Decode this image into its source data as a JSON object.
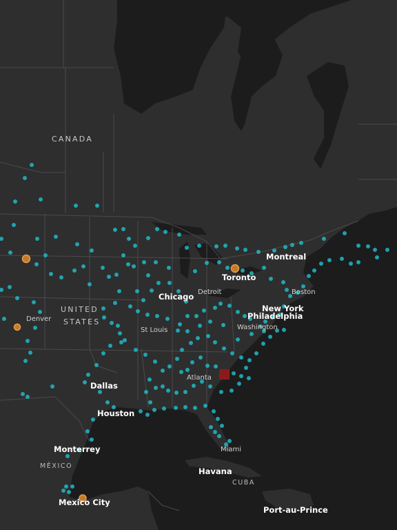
{
  "map": {
    "colors": {
      "land": "#2d2d2e",
      "water": "#1c1c1d",
      "border": "#4a4a4c",
      "station": "#1fb9c4",
      "highlight_orange": "#e08a2c",
      "highlight_red": "#8c1a1a"
    },
    "country_labels": {
      "canada": "CANADA",
      "united": "UNITED",
      "states": "STATES",
      "mexico": "MÉXICO",
      "cuba": "CUBA"
    },
    "city_labels": {
      "montreal": "Montreal",
      "toronto": "Toronto",
      "detroit": "Detroit",
      "boston": "Boston",
      "chicago": "Chicago",
      "new_york": "New York",
      "philadelphia": "Philadelphia",
      "washington": "Washington",
      "denver": "Denver",
      "st_louis": "St Louis",
      "atlanta": "Atlanta",
      "dallas": "Dallas",
      "houston": "Houston",
      "miami": "Miami",
      "monterrey": "Monterrey",
      "havana": "Havana",
      "mexico_city": "Mexico City",
      "port_au_prince": "Port-au-Prince"
    },
    "marker_icons": {
      "station": "circle-icon",
      "orange": "circle-outline-icon",
      "red": "square-icon"
    }
  }
}
